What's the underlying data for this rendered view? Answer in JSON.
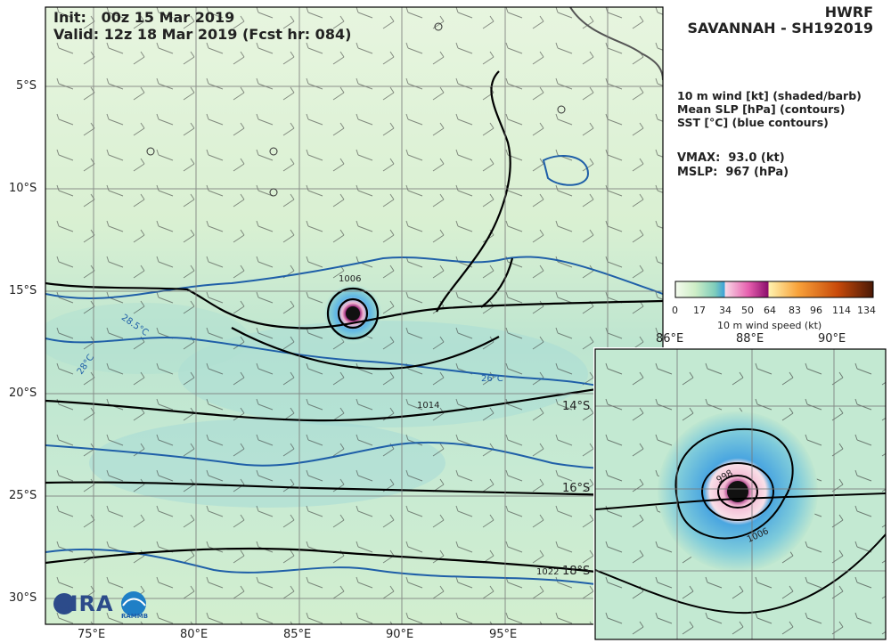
{
  "header": {
    "init": "Init:   00z 15 Mar 2019",
    "valid": "Valid: 12z 18 Mar 2019 (Fcst hr: 084)",
    "model": "HWRF",
    "storm": "SAVANNAH - SH192019"
  },
  "legend": {
    "line1": "10 m wind [kt] (shaded/barb)",
    "line2": "Mean SLP [hPa] (contours)",
    "line3": "SST [°C] (blue contours)"
  },
  "stats": {
    "vmax": "VMAX:  93.0 (kt)",
    "mslp": "MSLP:  967 (hPa)"
  },
  "colorbar": {
    "ticks": [
      "0",
      "17",
      "34",
      "50",
      "64",
      "83",
      "96",
      "114",
      "134"
    ],
    "label": "10 m wind speed (kt)"
  },
  "main_axes": {
    "lon_ticks": [
      "75°E",
      "80°E",
      "85°E",
      "90°E",
      "95°E"
    ],
    "lat_ticks": [
      "5°S",
      "10°S",
      "15°S",
      "20°S",
      "25°S",
      "30°S"
    ]
  },
  "contour_labels": {
    "slp": [
      "1006",
      "1014",
      "1022"
    ],
    "sst": [
      "28.5°C",
      "28°C",
      "26°C"
    ]
  },
  "inset": {
    "lon_ticks": [
      "86°E",
      "88°E",
      "90°E"
    ],
    "lat_ticks": [
      "14°S",
      "16°S",
      "18°S"
    ],
    "slp_labels": [
      "998",
      "1006"
    ]
  },
  "logo": {
    "text": "CIRA",
    "badge": "RAMMB"
  }
}
